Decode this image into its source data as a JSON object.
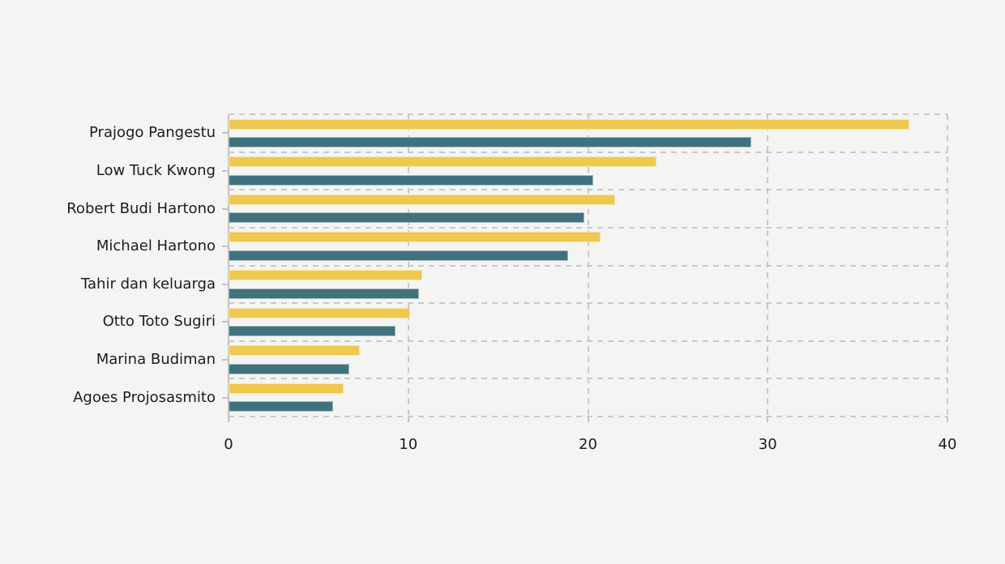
{
  "page": {
    "background_color": "#f4f4f3",
    "text_color": "#1c1c1c",
    "gridline_color": "#c9c9c9"
  },
  "chart_data": {
    "type": "bar",
    "orientation": "horizontal",
    "title": "",
    "subtitle": "",
    "xlabel": "",
    "ylabel": "",
    "legend": "none",
    "grid": {
      "style": "dashed",
      "color": "#c9c9c9"
    },
    "categories": [
      "Prajogo Pangestu",
      "Low Tuck Kwong",
      "Robert Budi Hartono",
      "Michael Hartono",
      "Tahir dan keluarga",
      "Otto Toto Sugiri",
      "Marina Budiman",
      "Agoes Projosasmito"
    ],
    "series": [
      {
        "name": "upper-yellow-bars",
        "color": "#eec84f",
        "values": [
          37.9,
          23.8,
          21.5,
          20.7,
          10.8,
          10.1,
          7.3,
          6.4
        ]
      },
      {
        "name": "lower-teal-bars",
        "color": "#40727e",
        "values": [
          29.1,
          20.3,
          19.8,
          18.9,
          10.6,
          9.3,
          6.7,
          5.8
        ]
      }
    ],
    "xlim": [
      0,
      40
    ],
    "xticks": [
      0,
      10,
      20,
      30,
      40
    ]
  }
}
